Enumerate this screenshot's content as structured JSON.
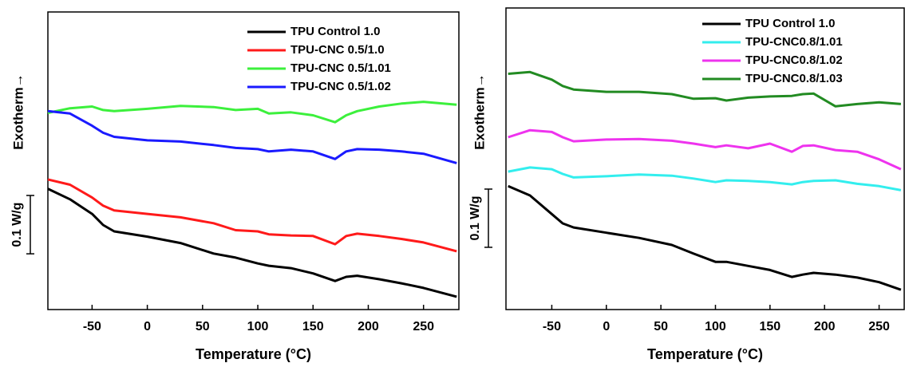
{
  "chart_data": [
    {
      "type": "line",
      "x_label": "Temperature (°C)",
      "y_label": "Exotherm→",
      "scale_bar": {
        "value": 0.1,
        "label": "0.1 W/g"
      },
      "xlim": [
        -90,
        282
      ],
      "ylim": [
        0,
        0.51
      ],
      "xticks": [
        -50,
        0,
        50,
        100,
        150,
        200,
        250
      ],
      "legend": "upper right",
      "x": [
        -90,
        -70,
        -50,
        -40,
        -30,
        0,
        30,
        60,
        80,
        100,
        110,
        130,
        150,
        170,
        180,
        190,
        210,
        230,
        250,
        280
      ],
      "series": [
        {
          "name": "TPU Control 1.0",
          "color": "#000000",
          "values": [
            0.207,
            0.189,
            0.164,
            0.145,
            0.134,
            0.125,
            0.114,
            0.096,
            0.089,
            0.079,
            0.075,
            0.071,
            0.062,
            0.049,
            0.056,
            0.058,
            0.052,
            0.045,
            0.037,
            0.022
          ]
        },
        {
          "name": "TPU-CNC 0.5/1.0",
          "color": "#ff1a1a",
          "values": [
            0.223,
            0.214,
            0.192,
            0.178,
            0.17,
            0.164,
            0.158,
            0.148,
            0.136,
            0.134,
            0.129,
            0.127,
            0.126,
            0.112,
            0.126,
            0.13,
            0.126,
            0.121,
            0.115,
            0.1
          ]
        },
        {
          "name": "TPU-CNC 0.5/1.01",
          "color": "#3cf03c",
          "values": [
            0.337,
            0.345,
            0.348,
            0.342,
            0.34,
            0.344,
            0.349,
            0.347,
            0.342,
            0.344,
            0.336,
            0.338,
            0.333,
            0.321,
            0.333,
            0.34,
            0.348,
            0.353,
            0.356,
            0.351
          ]
        },
        {
          "name": "TPU-CNC 0.5/1.02",
          "color": "#1a1aff",
          "values": [
            0.34,
            0.336,
            0.315,
            0.303,
            0.296,
            0.29,
            0.288,
            0.282,
            0.277,
            0.275,
            0.271,
            0.274,
            0.271,
            0.258,
            0.271,
            0.275,
            0.274,
            0.271,
            0.267,
            0.251
          ]
        }
      ]
    },
    {
      "type": "line",
      "x_label": "Temperature (°C)",
      "y_label": "Exotherm→",
      "scale_bar": {
        "value": 0.1,
        "label": "0.1 W/g"
      },
      "xlim": [
        -92,
        273
      ],
      "ylim": [
        0,
        0.518
      ],
      "xticks": [
        -50,
        0,
        50,
        100,
        150,
        200,
        250
      ],
      "legend": "upper right",
      "x": [
        -90,
        -70,
        -50,
        -40,
        -30,
        0,
        30,
        60,
        80,
        100,
        110,
        130,
        150,
        170,
        180,
        190,
        210,
        230,
        250,
        270
      ],
      "series": [
        {
          "name": "TPU Control 1.0",
          "color": "#000000",
          "values": [
            0.212,
            0.196,
            0.164,
            0.148,
            0.141,
            0.132,
            0.123,
            0.111,
            0.096,
            0.082,
            0.082,
            0.075,
            0.068,
            0.056,
            0.06,
            0.063,
            0.06,
            0.055,
            0.047,
            0.034
          ]
        },
        {
          "name": "TPU-CNC0.8/1.01",
          "color": "#33eeee",
          "values": [
            0.237,
            0.244,
            0.241,
            0.233,
            0.227,
            0.229,
            0.232,
            0.23,
            0.225,
            0.219,
            0.222,
            0.221,
            0.219,
            0.215,
            0.219,
            0.221,
            0.222,
            0.216,
            0.212,
            0.205
          ]
        },
        {
          "name": "TPU-CNC0.8/1.02",
          "color": "#ee33ee",
          "values": [
            0.296,
            0.308,
            0.305,
            0.296,
            0.289,
            0.292,
            0.293,
            0.29,
            0.285,
            0.279,
            0.282,
            0.277,
            0.285,
            0.271,
            0.281,
            0.282,
            0.274,
            0.271,
            0.258,
            0.241
          ]
        },
        {
          "name": "TPU-CNC0.8/1.03",
          "color": "#228b22",
          "values": [
            0.405,
            0.408,
            0.395,
            0.384,
            0.378,
            0.374,
            0.374,
            0.37,
            0.362,
            0.363,
            0.359,
            0.364,
            0.366,
            0.367,
            0.37,
            0.371,
            0.349,
            0.353,
            0.356,
            0.353
          ]
        }
      ]
    }
  ]
}
